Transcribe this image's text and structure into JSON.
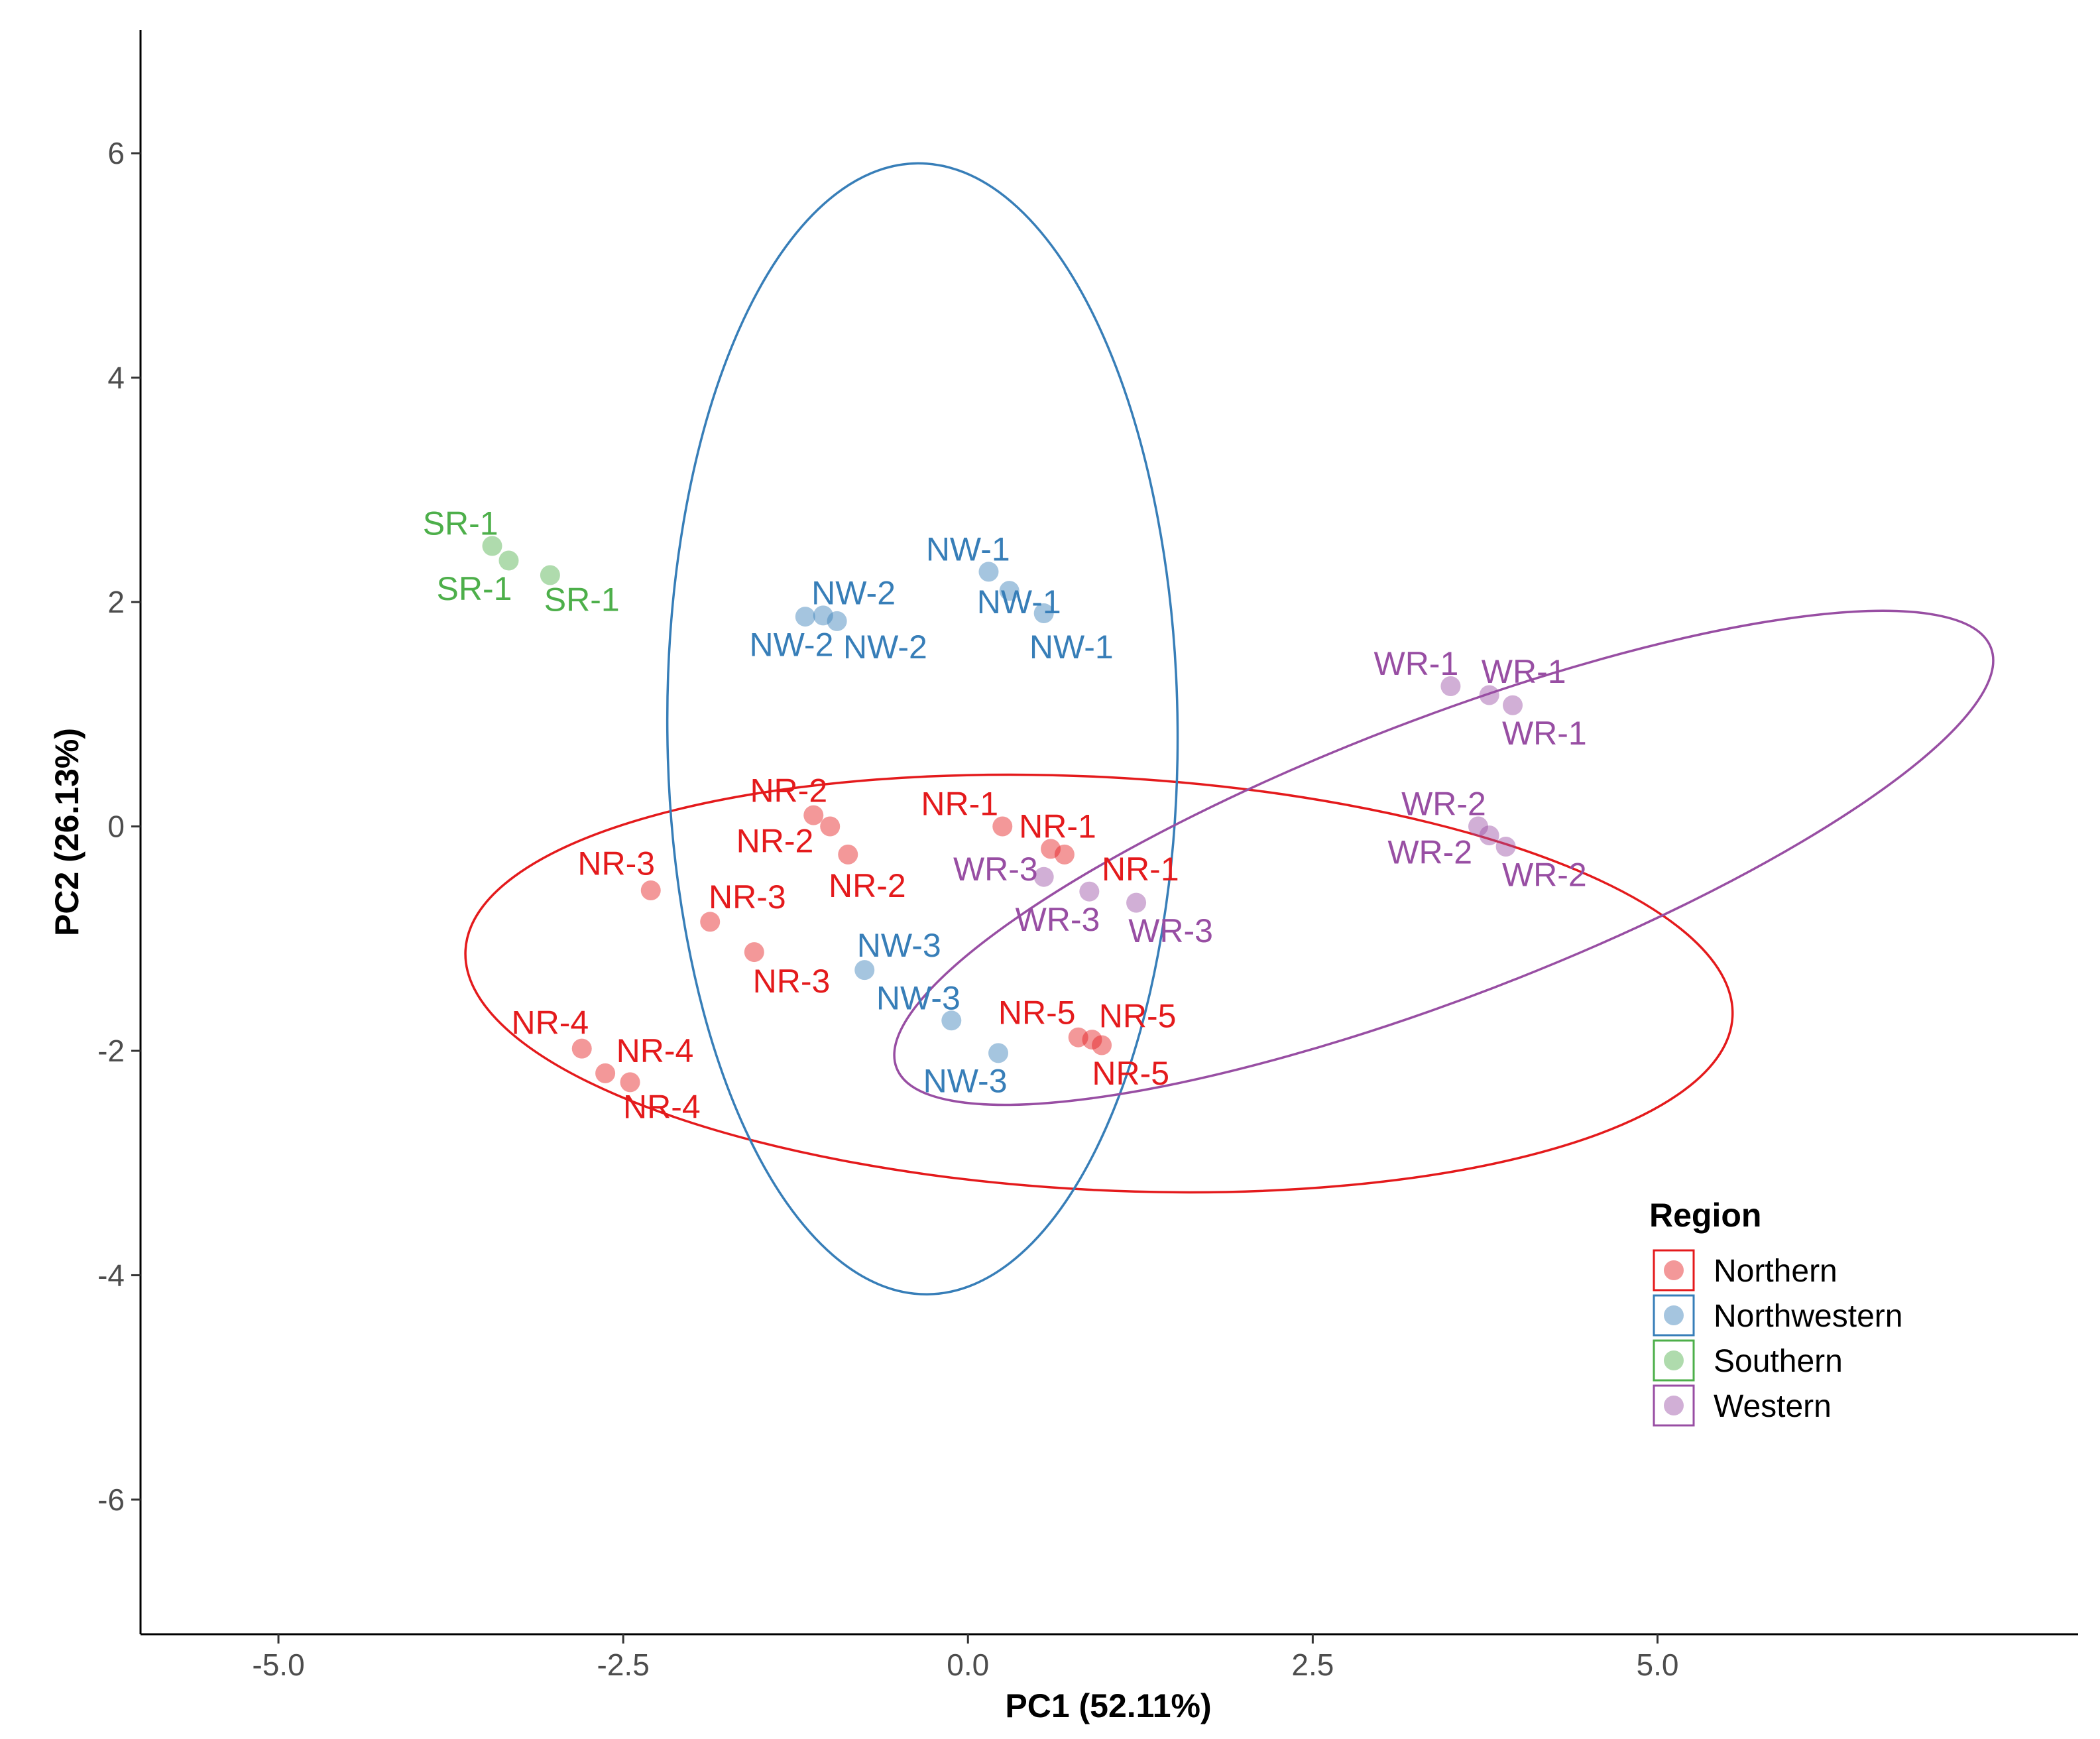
{
  "chart_data": {
    "type": "scatter",
    "xlabel": "PC1 (52.11%)",
    "ylabel": "PC2 (26.13%)",
    "xlim": [
      -6.0,
      8.05
    ],
    "ylim": [
      -7.2,
      7.1
    ],
    "x_ticks": [
      -5.0,
      -2.5,
      0.0,
      2.5,
      5.0
    ],
    "x_tick_labels": [
      "-5.0",
      "-2.5",
      "0.0",
      "2.5",
      "5.0"
    ],
    "y_ticks": [
      -6,
      -4,
      -2,
      0,
      2,
      4,
      6
    ],
    "y_tick_labels": [
      "-6",
      "-4",
      "-2",
      "0",
      "2",
      "4",
      "6"
    ],
    "grid": false,
    "legend": {
      "title": "Region",
      "position": "right-bottom",
      "entries": [
        {
          "label": "Northern",
          "color": "#e41a1c"
        },
        {
          "label": "Northwestern",
          "color": "#377eb8"
        },
        {
          "label": "Southern",
          "color": "#4daf4a"
        },
        {
          "label": "Western",
          "color": "#984ea3"
        }
      ]
    },
    "series": [
      {
        "name": "Northern",
        "color": "#e41a1c",
        "ellipse": {
          "center": [
            0.95,
            -1.4
          ],
          "semi_axis_x": 4.6,
          "semi_axis_y": 1.84,
          "rotation_deg": -3
        },
        "points": [
          {
            "x": 0.25,
            "y": 0.0,
            "label": "NR-1",
            "lx": -0.06,
            "ly": 0.2
          },
          {
            "x": 0.6,
            "y": -0.2,
            "label": "NR-1",
            "lx": 0.65,
            "ly": 0.0
          },
          {
            "x": 0.7,
            "y": -0.25,
            "label": "NR-1",
            "lx": 1.25,
            "ly": -0.38
          },
          {
            "x": -1.12,
            "y": 0.1,
            "label": "NR-2",
            "lx": -1.3,
            "ly": 0.32
          },
          {
            "x": -1.0,
            "y": 0.0,
            "label": "NR-2",
            "lx": -1.4,
            "ly": -0.13
          },
          {
            "x": -0.87,
            "y": -0.25,
            "label": "NR-2",
            "lx": -0.73,
            "ly": -0.53
          },
          {
            "x": -2.3,
            "y": -0.57,
            "label": "NR-3",
            "lx": -2.55,
            "ly": -0.33
          },
          {
            "x": -1.87,
            "y": -0.85,
            "label": "NR-3",
            "lx": -1.6,
            "ly": -0.63
          },
          {
            "x": -1.55,
            "y": -1.12,
            "label": "NR-3",
            "lx": -1.28,
            "ly": -1.38
          },
          {
            "x": -2.8,
            "y": -1.98,
            "label": "NR-4",
            "lx": -3.03,
            "ly": -1.75
          },
          {
            "x": -2.63,
            "y": -2.2,
            "label": "NR-4",
            "lx": -2.27,
            "ly": -2.0
          },
          {
            "x": -2.45,
            "y": -2.28,
            "label": "NR-4",
            "lx": -2.22,
            "ly": -2.5
          },
          {
            "x": 0.8,
            "y": -1.88,
            "label": "NR-5",
            "lx": 0.5,
            "ly": -1.66
          },
          {
            "x": 0.9,
            "y": -1.9,
            "label": "NR-5",
            "lx": 1.23,
            "ly": -1.69
          },
          {
            "x": 0.97,
            "y": -1.95,
            "label": "NR-5",
            "lx": 1.18,
            "ly": -2.2
          }
        ]
      },
      {
        "name": "Northwestern",
        "color": "#377eb8",
        "ellipse": {
          "center": [
            -0.33,
            0.87
          ],
          "semi_axis_x": 1.85,
          "semi_axis_y": 5.04,
          "rotation_deg": 0.5
        },
        "points": [
          {
            "x": 0.15,
            "y": 2.27,
            "label": "NW-1",
            "lx": 0.0,
            "ly": 2.47
          },
          {
            "x": 0.3,
            "y": 2.1,
            "label": "NW-1",
            "lx": 0.37,
            "ly": 2.0
          },
          {
            "x": 0.55,
            "y": 1.9,
            "label": "NW-1",
            "lx": 0.75,
            "ly": 1.6
          },
          {
            "x": -1.18,
            "y": 1.87,
            "label": "NW-2",
            "lx": -0.83,
            "ly": 2.08
          },
          {
            "x": -1.05,
            "y": 1.88,
            "label": "NW-2",
            "lx": -1.28,
            "ly": 1.62
          },
          {
            "x": -0.95,
            "y": 1.83,
            "label": "NW-2",
            "lx": -0.6,
            "ly": 1.6
          },
          {
            "x": -0.75,
            "y": -1.28,
            "label": "NW-3",
            "lx": -0.5,
            "ly": -1.06
          },
          {
            "x": -0.12,
            "y": -1.73,
            "label": "NW-3",
            "lx": -0.36,
            "ly": -1.53
          },
          {
            "x": 0.22,
            "y": -2.02,
            "label": "NW-3",
            "lx": -0.02,
            "ly": -2.27
          }
        ]
      },
      {
        "name": "Southern",
        "color": "#4daf4a",
        "ellipse": null,
        "points": [
          {
            "x": -3.45,
            "y": 2.5,
            "label": "SR-1",
            "lx": -3.68,
            "ly": 2.7
          },
          {
            "x": -3.33,
            "y": 2.37,
            "label": "SR-1",
            "lx": -3.58,
            "ly": 2.12
          },
          {
            "x": -3.03,
            "y": 2.24,
            "label": "SR-1",
            "lx": -2.8,
            "ly": 2.02
          }
        ]
      },
      {
        "name": "Western",
        "color": "#984ea3",
        "ellipse": {
          "center": [
            3.45,
            -0.28
          ],
          "semi_axis_x": 4.25,
          "semi_axis_y": 1.24,
          "rotation_deg": 21
        },
        "points": [
          {
            "x": 3.5,
            "y": 1.25,
            "label": "WR-1",
            "lx": 3.25,
            "ly": 1.45
          },
          {
            "x": 3.78,
            "y": 1.17,
            "label": "WR-1",
            "lx": 4.03,
            "ly": 1.38
          },
          {
            "x": 3.95,
            "y": 1.08,
            "label": "WR-1",
            "lx": 4.18,
            "ly": 0.83
          },
          {
            "x": 3.7,
            "y": 0.0,
            "label": "WR-2",
            "lx": 3.45,
            "ly": 0.2
          },
          {
            "x": 3.78,
            "y": -0.08,
            "label": "WR-2",
            "lx": 3.35,
            "ly": -0.23
          },
          {
            "x": 3.9,
            "y": -0.18,
            "label": "WR-2",
            "lx": 4.18,
            "ly": -0.43
          },
          {
            "x": 0.55,
            "y": -0.45,
            "label": "WR-3",
            "lx": 0.2,
            "ly": -0.38
          },
          {
            "x": 0.88,
            "y": -0.58,
            "label": "WR-3",
            "lx": 0.65,
            "ly": -0.83
          },
          {
            "x": 1.22,
            "y": -0.68,
            "label": "WR-3",
            "lx": 1.47,
            "ly": -0.93
          }
        ]
      }
    ]
  }
}
